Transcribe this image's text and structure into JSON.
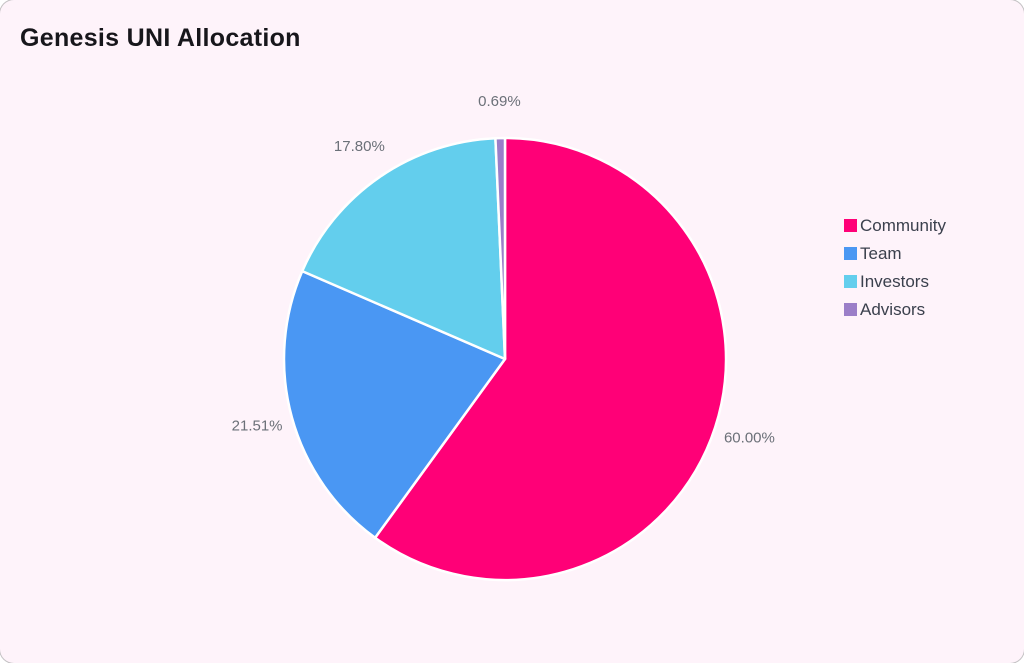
{
  "page": {
    "title": "Genesis UNI Allocation",
    "background_color": "#FEF3FA",
    "title_color": "#17161B",
    "label_color": "#6B7078",
    "legend_text_color": "#3B404D",
    "slice_gap_color": "#FFFFFF"
  },
  "chart_data": {
    "type": "pie",
    "title": "Genesis UNI Allocation",
    "categories": [
      "Community",
      "Team",
      "Investors",
      "Advisors"
    ],
    "values": [
      60.0,
      21.51,
      17.8,
      0.69
    ],
    "labels": [
      "60.00%",
      "21.51%",
      "17.80%",
      "0.69%"
    ],
    "colors": [
      "#FF0077",
      "#4A97F3",
      "#63CEED",
      "#9B7EC8"
    ],
    "start_angle": "12-oclock",
    "direction": "clockwise",
    "legend_position": "right",
    "grid": false
  }
}
